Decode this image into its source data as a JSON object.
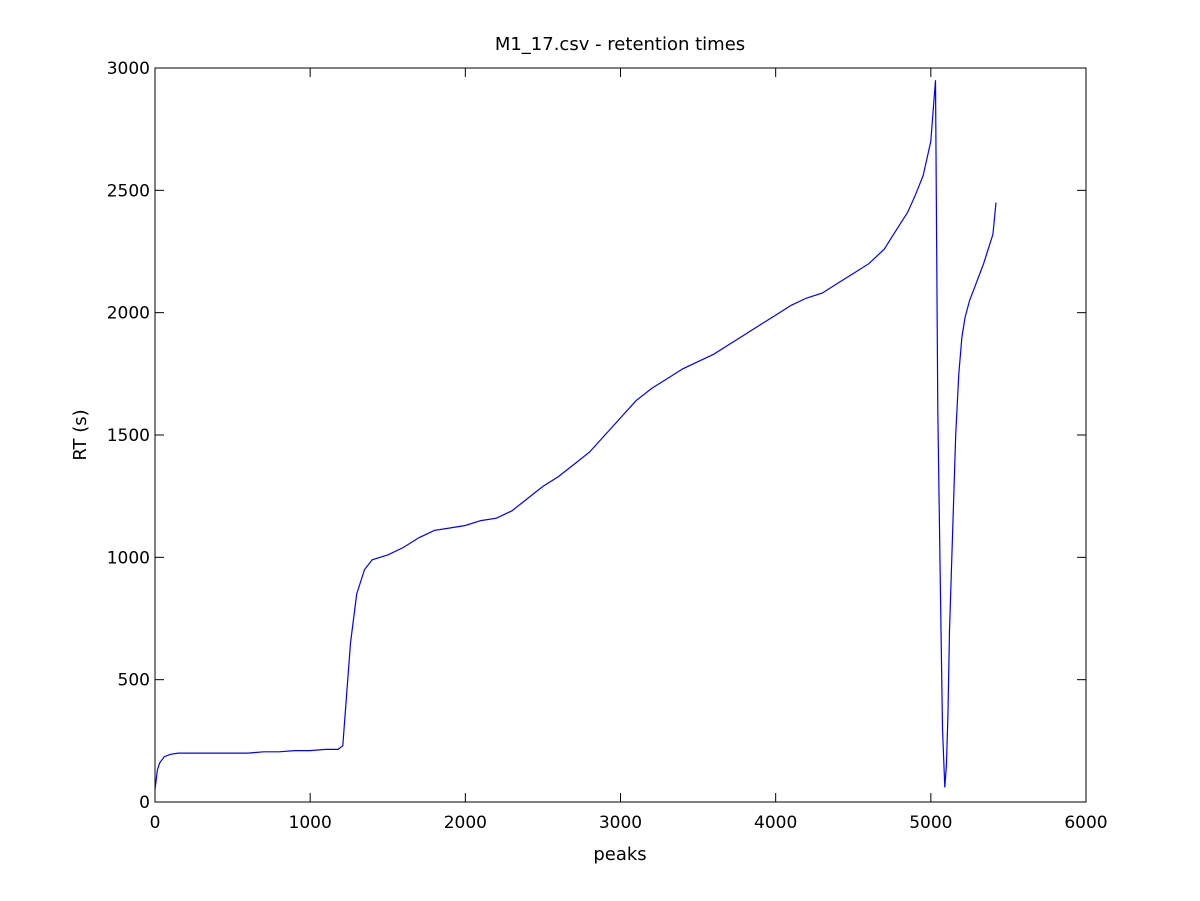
{
  "chart_data": {
    "type": "line",
    "title": "M1_17.csv - retention times",
    "xlabel": "peaks",
    "ylabel": "RT (s)",
    "xlim": [
      0,
      6000
    ],
    "ylim": [
      0,
      3000
    ],
    "xticks": [
      0,
      1000,
      2000,
      3000,
      4000,
      5000,
      6000
    ],
    "yticks": [
      0,
      500,
      1000,
      1500,
      2000,
      2500,
      3000
    ],
    "grid": false,
    "series_color": "#0000ff",
    "series": [
      {
        "x": [
          0,
          15,
          30,
          60,
          100,
          150,
          200,
          300,
          400,
          500,
          600,
          700,
          800,
          900,
          1000,
          1100,
          1180,
          1210,
          1230,
          1260,
          1300,
          1350,
          1400,
          1500,
          1600,
          1700,
          1800,
          1900,
          2000,
          2100,
          2200,
          2300,
          2400,
          2500,
          2600,
          2700,
          2800,
          2900,
          3000,
          3100,
          3200,
          3300,
          3400,
          3500,
          3600,
          3700,
          3800,
          3900,
          4000,
          4100,
          4200,
          4300,
          4400,
          4500,
          4600,
          4700,
          4750,
          4800,
          4850,
          4900,
          4950,
          5000,
          5030,
          5045,
          5060,
          5075,
          5090,
          5100,
          5110,
          5120,
          5140,
          5160,
          5180,
          5200,
          5220,
          5250,
          5280,
          5310,
          5340,
          5370,
          5400,
          5420
        ],
        "y": [
          50,
          130,
          160,
          185,
          195,
          200,
          200,
          200,
          200,
          200,
          200,
          205,
          205,
          210,
          210,
          215,
          215,
          230,
          400,
          650,
          850,
          950,
          990,
          1010,
          1040,
          1080,
          1110,
          1120,
          1130,
          1150,
          1160,
          1190,
          1240,
          1290,
          1330,
          1380,
          1430,
          1500,
          1570,
          1640,
          1690,
          1730,
          1770,
          1800,
          1830,
          1870,
          1910,
          1950,
          1990,
          2030,
          2060,
          2080,
          2120,
          2160,
          2200,
          2260,
          2310,
          2360,
          2410,
          2480,
          2560,
          2700,
          2950,
          1600,
          950,
          300,
          60,
          150,
          350,
          700,
          1100,
          1500,
          1750,
          1900,
          1980,
          2050,
          2100,
          2150,
          2200,
          2260,
          2320,
          2450
        ]
      }
    ]
  }
}
